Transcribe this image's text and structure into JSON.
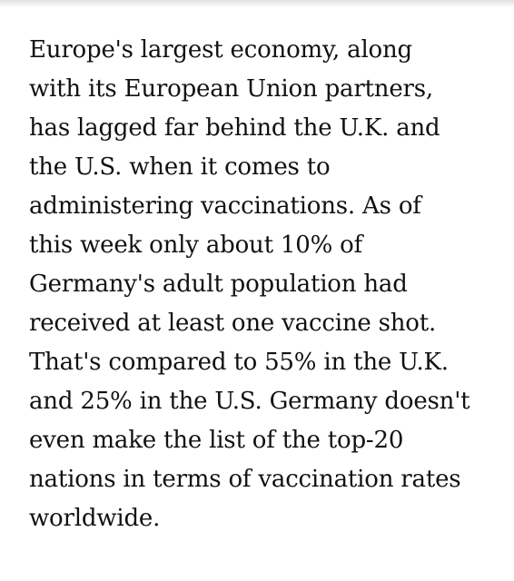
{
  "article": {
    "lines": [
      "Europe's largest economy, along",
      "with its European Union partners,",
      "has lagged far behind the U.K. and",
      "the U.S. when it comes to",
      "administering vaccinations. As of",
      "this week only about 10% of",
      "Germany's adult population had",
      "received at least one vaccine shot.",
      "That's compared to 55% in the U.K.",
      "and 25% in the U.S. Germany doesn't",
      "even make the list of the top-20",
      "nations in terms of vaccination rates",
      "worldwide."
    ]
  }
}
